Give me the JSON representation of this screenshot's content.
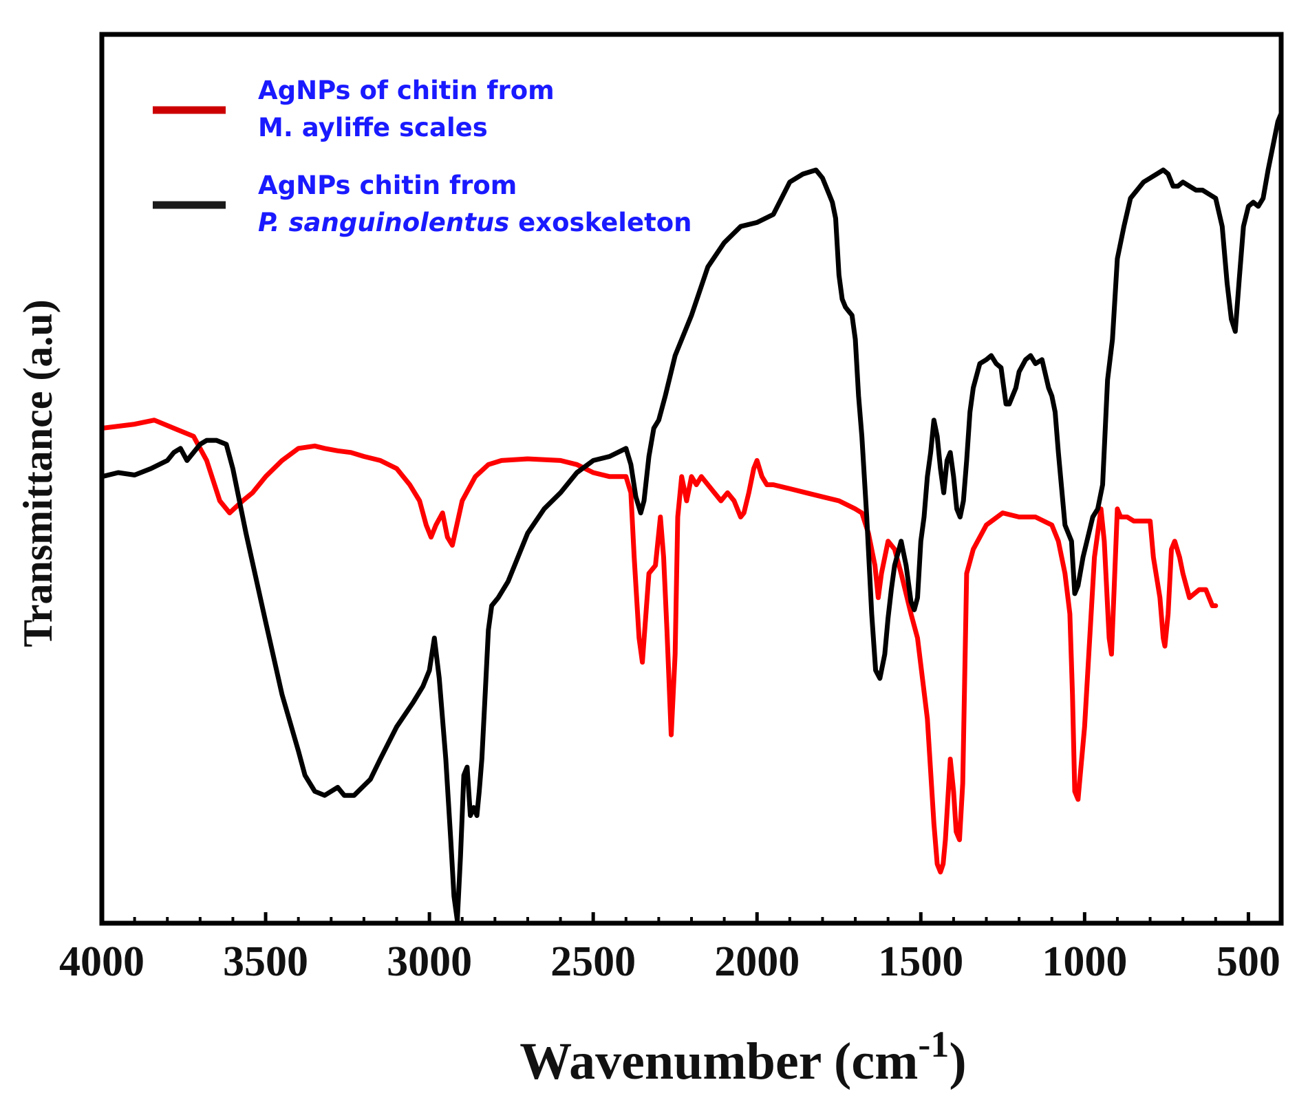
{
  "chart_data": {
    "type": "line",
    "xlabel": "Wavenumber (cm",
    "xlabel_sup": "-1",
    "xlabel_close": ")",
    "ylabel": "Transmittance (a.u)",
    "xlim": [
      4000,
      400
    ],
    "x_reversed": true,
    "ylim": [
      0,
      100
    ],
    "y_ticks_shown": false,
    "grid": false,
    "legend_position": "top-left",
    "x_ticks": [
      4000,
      3500,
      3000,
      2500,
      2000,
      1500,
      1000,
      500
    ],
    "x_tick_labels": [
      "4000",
      "3500",
      "3000",
      "2500",
      "2000",
      "1500",
      "1000",
      "500"
    ],
    "series": [
      {
        "color": "#ff0000",
        "legend_line_color": "#cc0000",
        "legend_lines": [
          {
            "text": "AgNPs of chitin from",
            "italic": ""
          },
          {
            "text": "M. ayliffe scales",
            "italic": ""
          }
        ],
        "x": [
          4000,
          3900,
          3840,
          3780,
          3720,
          3680,
          3640,
          3610,
          3570,
          3540,
          3500,
          3450,
          3400,
          3350,
          3320,
          3280,
          3240,
          3200,
          3150,
          3100,
          3060,
          3030,
          3010,
          2995,
          2980,
          2960,
          2945,
          2930,
          2900,
          2860,
          2820,
          2780,
          2700,
          2600,
          2550,
          2500,
          2450,
          2400,
          2385,
          2375,
          2360,
          2350,
          2330,
          2310,
          2295,
          2285,
          2275,
          2262,
          2250,
          2242,
          2230,
          2215,
          2200,
          2185,
          2170,
          2150,
          2130,
          2110,
          2090,
          2070,
          2050,
          2040,
          2025,
          2010,
          2000,
          1985,
          1970,
          1950,
          1900,
          1850,
          1800,
          1750,
          1700,
          1680,
          1660,
          1640,
          1630,
          1620,
          1600,
          1580,
          1560,
          1530,
          1510,
          1480,
          1460,
          1450,
          1440,
          1432,
          1425,
          1410,
          1400,
          1392,
          1382,
          1372,
          1360,
          1340,
          1300,
          1250,
          1200,
          1150,
          1100,
          1080,
          1060,
          1045,
          1037,
          1030,
          1020,
          1000,
          970,
          950,
          940,
          925,
          918,
          910,
          900,
          890,
          870,
          850,
          830,
          800,
          790,
          770,
          760,
          755,
          745,
          735,
          725,
          710,
          700,
          680,
          650,
          630,
          610,
          600
        ],
        "y": [
          61,
          61.5,
          62,
          61,
          60,
          57,
          52,
          50.5,
          52,
          53,
          55,
          57,
          58.5,
          58.8,
          58.5,
          58.2,
          58,
          57.5,
          57,
          56,
          54,
          52,
          49,
          47.5,
          49,
          50.5,
          47.5,
          46.5,
          52,
          55,
          56.5,
          57,
          57.2,
          57,
          56.5,
          55.5,
          55,
          55,
          53,
          45,
          35,
          32,
          43,
          44,
          50,
          45,
          36,
          23,
          33,
          50,
          55,
          52,
          55,
          54,
          55,
          54,
          53,
          52,
          53,
          52,
          50,
          50.5,
          53,
          56,
          57,
          55,
          54,
          54,
          53.5,
          53,
          52.5,
          52,
          51,
          50.5,
          48,
          44,
          40,
          43,
          47,
          46,
          43,
          38,
          35,
          25,
          12,
          7,
          6,
          7,
          10,
          20,
          16,
          11,
          10,
          17,
          43,
          46,
          49,
          50.5,
          50,
          50,
          49,
          47,
          43,
          38,
          28,
          16,
          15,
          24,
          45,
          51,
          47,
          35,
          33,
          41,
          51,
          50,
          50,
          49.5,
          49.5,
          49.5,
          45,
          40,
          35,
          34,
          38,
          46,
          47,
          45,
          43,
          40,
          41,
          41,
          39,
          39
        ]
      },
      {
        "color": "#000000",
        "legend_line_color": "#1a1a1a",
        "legend_lines": [
          {
            "text": "AgNPs chitin from",
            "italic": ""
          },
          {
            "text": " exoskeleton",
            "italic": "P. sanguinolentus"
          }
        ],
        "x": [
          4000,
          3950,
          3900,
          3850,
          3800,
          3780,
          3760,
          3740,
          3720,
          3700,
          3680,
          3650,
          3620,
          3600,
          3560,
          3500,
          3450,
          3400,
          3380,
          3350,
          3320,
          3300,
          3280,
          3260,
          3230,
          3180,
          3150,
          3100,
          3050,
          3020,
          3000,
          2985,
          2970,
          2950,
          2935,
          2925,
          2915,
          2905,
          2895,
          2885,
          2875,
          2865,
          2855,
          2848,
          2840,
          2830,
          2820,
          2810,
          2790,
          2760,
          2730,
          2700,
          2650,
          2600,
          2550,
          2500,
          2450,
          2400,
          2385,
          2370,
          2355,
          2345,
          2330,
          2315,
          2300,
          2280,
          2250,
          2200,
          2150,
          2100,
          2050,
          2000,
          1950,
          1900,
          1860,
          1820,
          1800,
          1780,
          1770,
          1760,
          1750,
          1740,
          1730,
          1720,
          1710,
          1700,
          1690,
          1680,
          1665,
          1650,
          1638,
          1625,
          1610,
          1600,
          1590,
          1580,
          1560,
          1545,
          1530,
          1520,
          1510,
          1500,
          1490,
          1480,
          1470,
          1460,
          1450,
          1440,
          1430,
          1420,
          1410,
          1400,
          1390,
          1380,
          1370,
          1360,
          1350,
          1340,
          1320,
          1300,
          1285,
          1270,
          1255,
          1240,
          1230,
          1210,
          1200,
          1180,
          1165,
          1150,
          1130,
          1110,
          1100,
          1090,
          1080,
          1060,
          1040,
          1030,
          1020,
          1005,
          990,
          975,
          960,
          945,
          930,
          915,
          900,
          880,
          860,
          840,
          820,
          800,
          780,
          760,
          745,
          730,
          715,
          700,
          680,
          660,
          640,
          620,
          600,
          580,
          565,
          552,
          540,
          528,
          515,
          500,
          485,
          470,
          455,
          440,
          425,
          410,
          400
        ],
        "y": [
          55,
          55.5,
          55.2,
          56,
          57,
          58,
          58.5,
          57,
          58,
          59,
          59.5,
          59.5,
          59,
          56,
          48,
          37,
          28,
          21,
          18,
          16,
          15.5,
          16,
          16.5,
          15.5,
          15.5,
          17.5,
          20,
          24,
          27,
          29,
          31,
          35,
          30,
          20,
          10,
          3,
          0,
          8,
          18,
          19,
          13,
          14,
          13,
          16,
          20,
          28,
          36,
          39,
          40,
          42,
          45,
          48,
          51,
          53,
          55.5,
          57,
          57.5,
          58.5,
          56.5,
          52.5,
          50.5,
          52,
          57.5,
          61,
          62,
          65,
          70,
          75,
          81,
          84,
          86,
          86.5,
          87.5,
          91.5,
          92.5,
          93,
          92,
          90,
          89,
          87,
          80,
          77,
          76,
          75.5,
          75,
          72,
          65,
          60,
          50,
          38,
          31,
          30,
          33,
          37.5,
          41,
          44,
          47,
          44,
          39.5,
          38.5,
          40,
          47,
          50,
          55,
          58,
          62,
          60,
          56,
          53,
          57,
          58,
          55,
          51,
          50,
          52,
          57,
          63,
          66,
          69,
          69.5,
          70,
          69,
          68.5,
          64,
          64,
          66,
          68,
          69.5,
          70,
          69,
          69.5,
          66,
          65,
          63,
          58,
          49,
          47,
          40.5,
          41.5,
          45,
          47.5,
          50,
          51,
          54,
          67,
          72,
          82,
          86,
          89.5,
          90.5,
          91.5,
          92,
          92.5,
          93,
          92.5,
          91,
          91,
          91.5,
          91,
          90.5,
          90.5,
          90,
          89.5,
          86,
          79,
          74.5,
          73,
          79.5,
          86,
          88.5,
          89,
          88.5,
          89.5,
          93,
          96,
          99,
          100
        ]
      }
    ]
  }
}
